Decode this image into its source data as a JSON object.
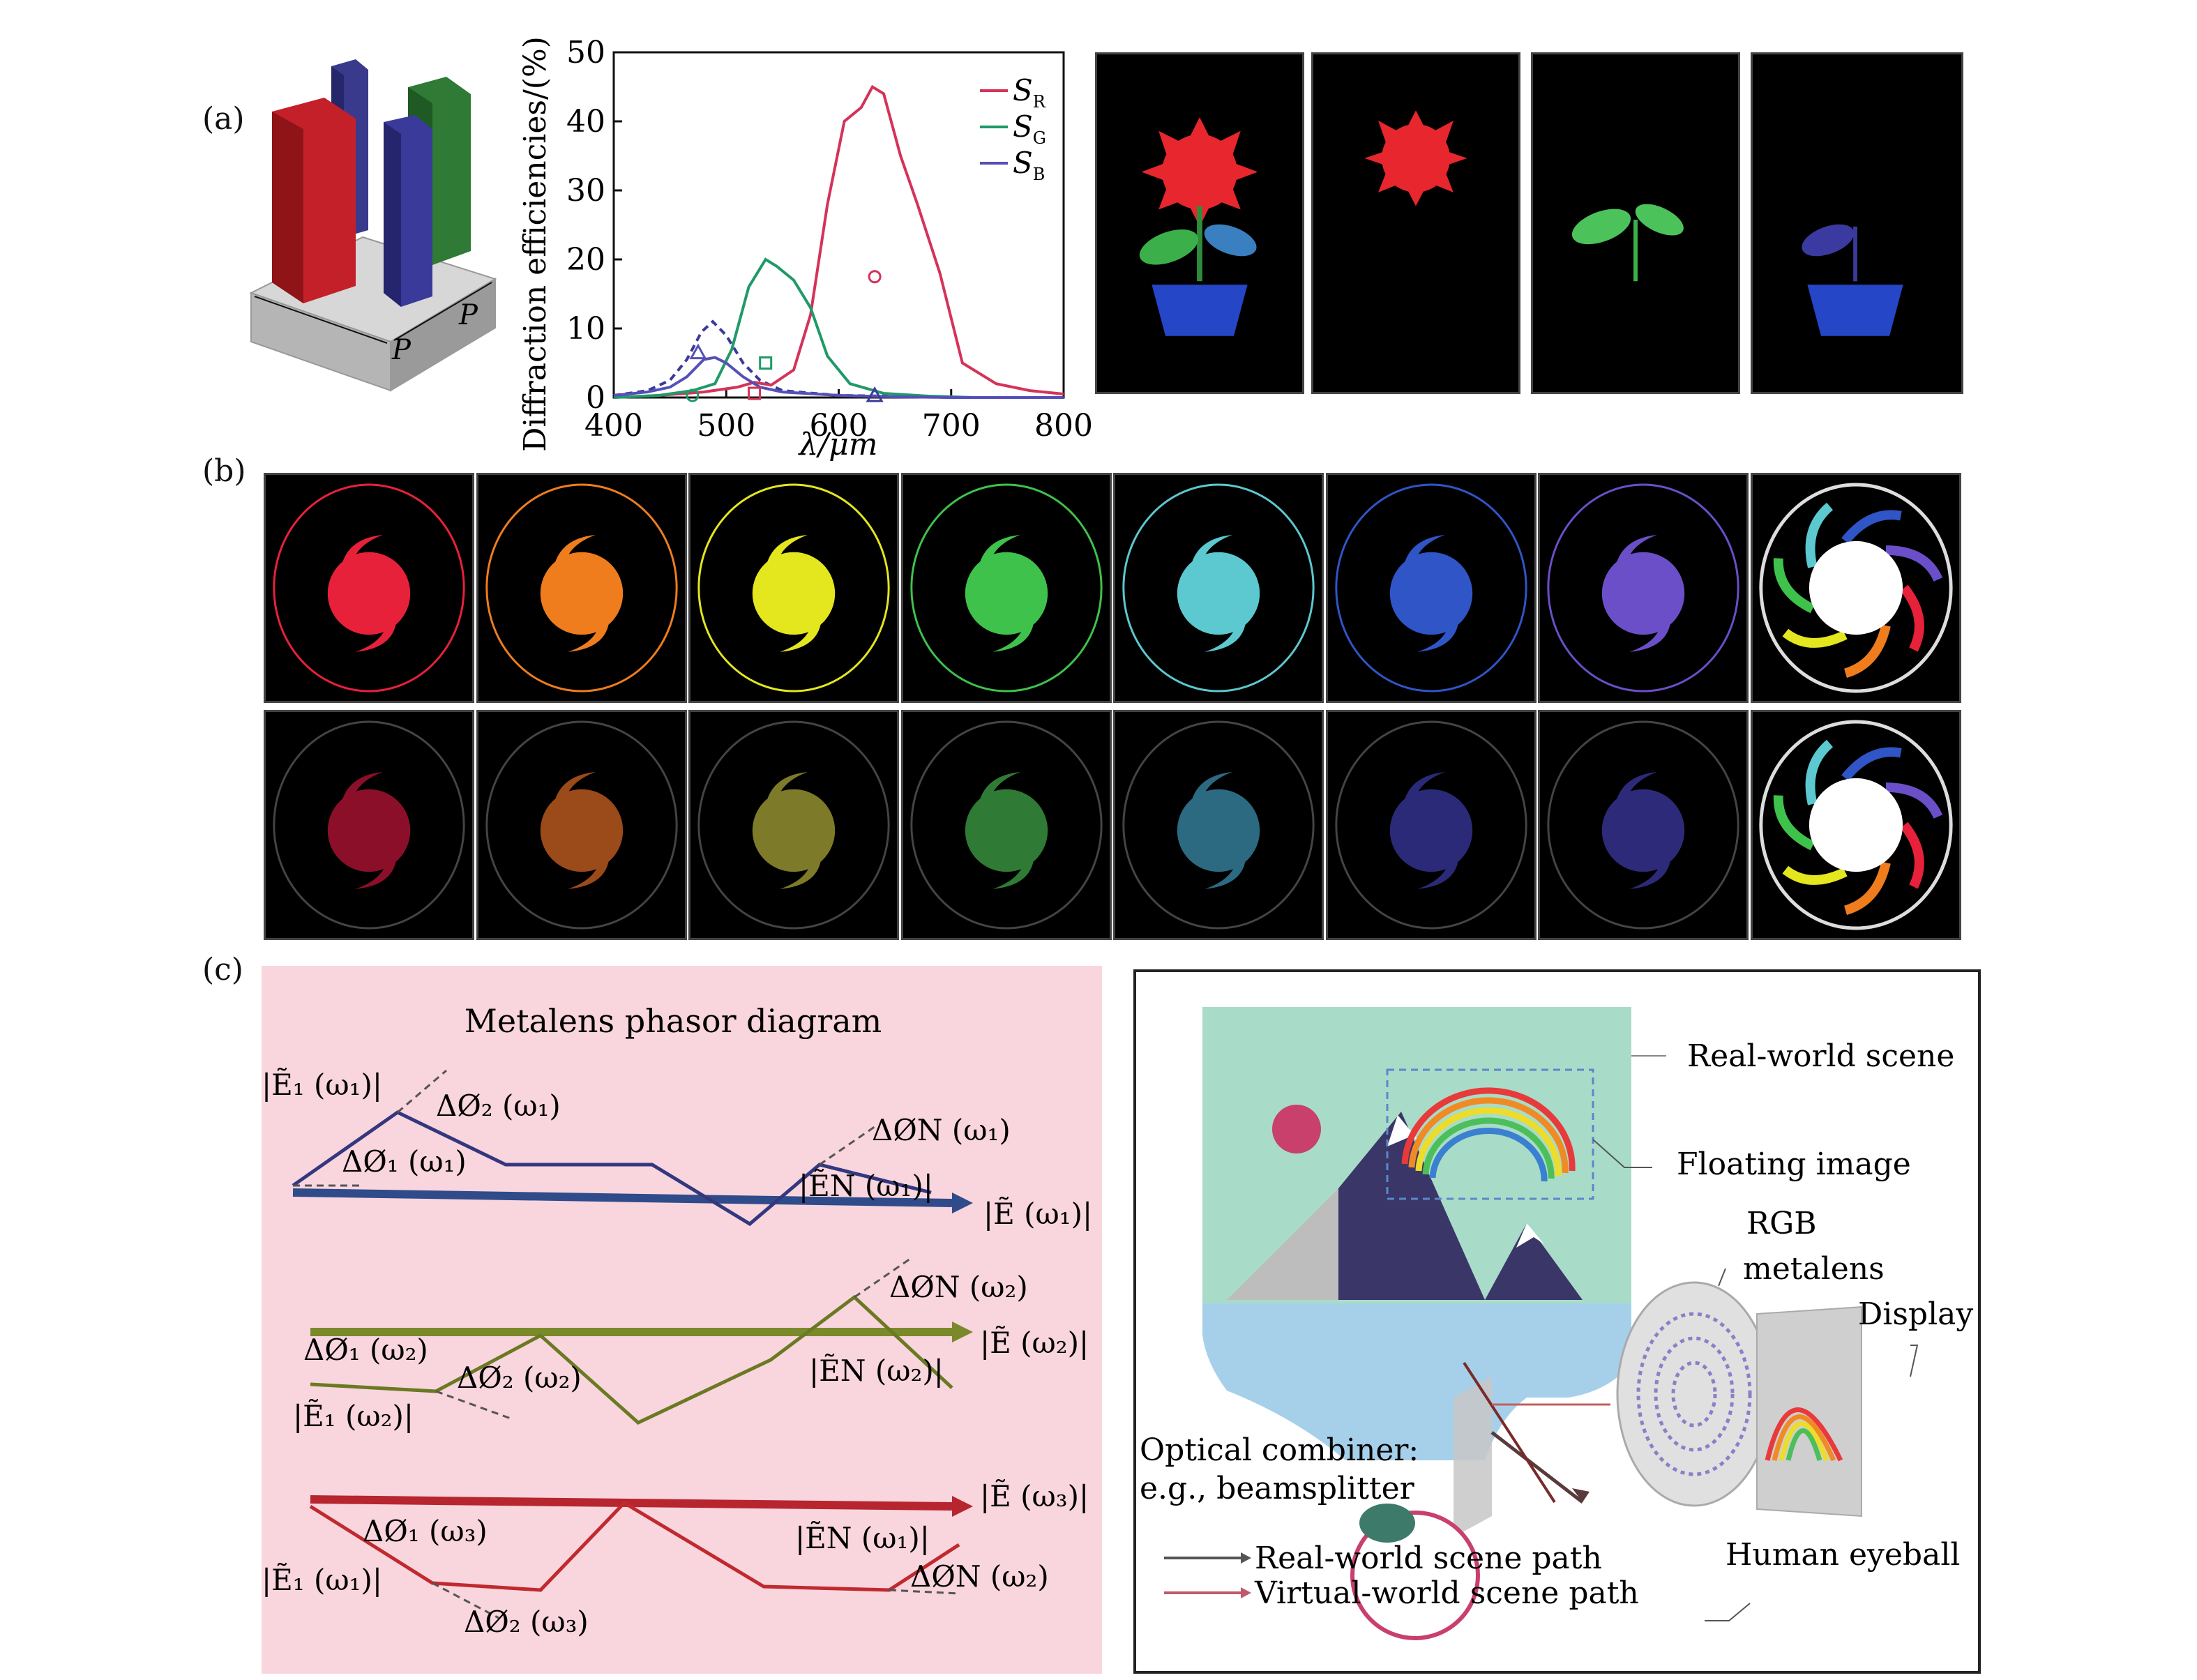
{
  "panels": {
    "a": "(a)",
    "b": "(b)",
    "c": "(c)"
  },
  "figure_a": {
    "p_label": "P"
  },
  "chart_data": {
    "type": "line",
    "xlabel": "λ/μm",
    "ylabel": "Diffraction efficiencies/(%)",
    "xlim": [
      400,
      800
    ],
    "ylim": [
      0,
      50
    ],
    "xticks": [
      400,
      500,
      600,
      700,
      800
    ],
    "yticks": [
      0,
      10,
      20,
      30,
      40,
      50
    ],
    "legend": "top-right",
    "series": [
      {
        "name": "S",
        "sub": "R",
        "color": "#d4335a",
        "x": [
          400,
          440,
          480,
          510,
          525,
          540,
          560,
          575,
          590,
          605,
          620,
          630,
          640,
          655,
          670,
          690,
          710,
          740,
          770,
          800
        ],
        "y": [
          0,
          0.3,
          0.8,
          1.5,
          2.2,
          1.8,
          4,
          12,
          28,
          40,
          42,
          45,
          44,
          35,
          28,
          18,
          5,
          2,
          1,
          0.5
        ]
      },
      {
        "name": "S",
        "sub": "G",
        "color": "#1f9a68",
        "x": [
          400,
          440,
          470,
          490,
          505,
          520,
          535,
          545,
          560,
          575,
          590,
          610,
          640,
          680,
          720,
          800
        ],
        "y": [
          0,
          0.3,
          1,
          2,
          7,
          16,
          20,
          19,
          17,
          13,
          6,
          2,
          0.6,
          0.2,
          0,
          0
        ]
      },
      {
        "name": "S",
        "sub": "B",
        "color": "#5550b8",
        "x": [
          400,
          430,
          450,
          465,
          480,
          490,
          500,
          515,
          530,
          550,
          600,
          650,
          700,
          800
        ],
        "y": [
          0.3,
          0.8,
          1.5,
          3,
          5.5,
          5.8,
          5,
          3,
          1.5,
          0.8,
          0.3,
          0.1,
          0,
          0
        ]
      }
    ],
    "dashed_series": {
      "color": "#3a3a9a",
      "x": [
        400,
        430,
        450,
        465,
        478,
        488,
        500,
        515,
        530,
        550,
        600,
        650,
        700
      ],
      "y": [
        0.3,
        1,
        2.5,
        5.5,
        9.5,
        11,
        9,
        5,
        2.5,
        1,
        0.3,
        0.2,
        0
      ]
    },
    "markers": [
      {
        "shape": "circle",
        "x": 632,
        "y": 17.5,
        "color": "#d4335a"
      },
      {
        "shape": "square",
        "x": 535,
        "y": 5,
        "color": "#1f9a68"
      },
      {
        "shape": "triangle",
        "x": 475,
        "y": 6.5,
        "color": "#5550b8"
      },
      {
        "shape": "circle",
        "x": 470,
        "y": 0.3,
        "color": "#1f9a68"
      },
      {
        "shape": "square",
        "x": 525,
        "y": 0.6,
        "color": "#d4335a"
      },
      {
        "shape": "triangle",
        "x": 632,
        "y": 0.3,
        "color": "#3a3a9a"
      }
    ]
  },
  "flower_tiles": [
    "combined",
    "red",
    "green",
    "blue"
  ],
  "swirl_rows": [
    [
      "#e8213a",
      "#ef7d1e",
      "#e4e61e",
      "#3fc24b",
      "#5bc9cf",
      "#2f55c7",
      "#6a4fc8",
      "white"
    ],
    [
      "#8c0f2a",
      "#9b4a1a",
      "#7d7a2a",
      "#2f7b36",
      "#2c6a82",
      "#2b2a78",
      "#2e2a7a",
      "white"
    ]
  ],
  "phasor": {
    "title": "Metalens phasor diagram",
    "row1": {
      "e1": "|Ẽ₁ (ω₁)|",
      "d2": "ΔØ₂ (ω₁)",
      "d1": "ΔØ₁ (ω₁)",
      "dn": "ΔØN (ω₁)",
      "en": "|ẼN (ω₁)|",
      "e": "|Ẽ (ω₁)|"
    },
    "row2": {
      "dn": "ΔØN (ω₂)",
      "e": "|Ẽ (ω₂)|",
      "d1": "ΔØ₁ (ω₂)",
      "d2": "ΔØ₂ (ω₂)",
      "en": "|ẼN (ω₂)|",
      "e1": "|Ẽ₁ (ω₂)|"
    },
    "row3": {
      "e": "|Ẽ (ω₃)|",
      "d1": "ΔØ₁ (ω₃)",
      "en": "|ẼN (ω₁)|",
      "e1": "|Ẽ₁ (ω₁)|",
      "dn": "ΔØN (ω₂)",
      "d2": "ΔØ₂ (ω₃)"
    }
  },
  "ar": {
    "real_world": "Real-world scene",
    "floating": "Floating image",
    "rgb": "RGB",
    "metalens": "metalens",
    "display": "Display",
    "combiner1": "Optical combiner:",
    "combiner2": "e.g., beamsplitter",
    "real_path": "Real-world scene path",
    "virtual_path": "Virtual-world scene path",
    "eyeball": "Human eyeball"
  }
}
